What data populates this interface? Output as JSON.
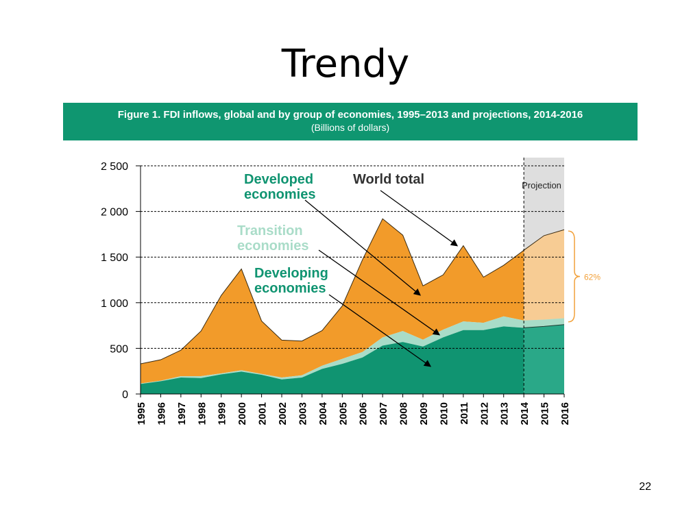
{
  "slide": {
    "title": "Trendy",
    "page_number": "22"
  },
  "figure": {
    "caption": "Figure 1. FDI inflows, global and by group of economies, 1995–2013 and projections, 2014-2016",
    "units": "(Billions of dollars)"
  },
  "colors": {
    "header_bg": "#0f9670",
    "developed": "#f29b2a",
    "transition": "#a9dcc8",
    "developing": "#109471",
    "developed_projection": "#f7cc94",
    "developing_projection": "#2aa888",
    "projection_bg": "#dedede",
    "bracket": "#f2a13a"
  },
  "chart_data": {
    "type": "area",
    "title": "Figure 1. FDI inflows, global and by group of economies, 1995–2013 and projections, 2014-2016",
    "subtitle": "(Billions of dollars)",
    "xlabel": "",
    "ylabel": "",
    "ylim": [
      0,
      2500
    ],
    "yticks": [
      0,
      500,
      1000,
      1500,
      2000,
      2500
    ],
    "ytick_labels": [
      "0",
      "500",
      "1 000",
      "1 500",
      "2 000",
      "2 500"
    ],
    "x": [
      "1995",
      "1996",
      "1997",
      "1998",
      "1999",
      "2000",
      "2001",
      "2002",
      "2003",
      "2004",
      "2005",
      "2006",
      "2007",
      "2008",
      "2009",
      "2010",
      "2011",
      "2012",
      "2013",
      "2014",
      "2015",
      "2016"
    ],
    "stacking": "cumulative",
    "series": [
      {
        "name": "Developing economies",
        "values": [
          110,
          140,
          180,
          175,
          215,
          245,
          210,
          160,
          180,
          275,
          330,
          400,
          530,
          570,
          520,
          620,
          700,
          700,
          740,
          725,
          740,
          760
        ]
      },
      {
        "name": "Transition economies",
        "values": [
          5,
          5,
          15,
          20,
          10,
          15,
          10,
          20,
          25,
          35,
          55,
          60,
          90,
          120,
          75,
          85,
          95,
          80,
          110,
          80,
          75,
          70
        ]
      },
      {
        "name": "Developed economies",
        "values": [
          215,
          230,
          285,
          495,
          855,
          1110,
          580,
          410,
          375,
          385,
          580,
          1010,
          1300,
          1050,
          590,
          600,
          830,
          500,
          560,
          770,
          920,
          970
        ]
      }
    ],
    "world_total": [
      330,
      375,
      480,
      690,
      1080,
      1370,
      800,
      590,
      580,
      695,
      965,
      1470,
      1920,
      1740,
      1185,
      1305,
      1625,
      1280,
      1410,
      1575,
      1735,
      1800
    ],
    "projection": {
      "start": "2014",
      "end": "2016",
      "label": "Projection"
    },
    "annotations": [
      {
        "text": "World total",
        "points_to": "world total line"
      },
      {
        "text": "Developed economies",
        "points_to": "developed area"
      },
      {
        "text": "Transition economies",
        "points_to": "transition band"
      },
      {
        "text": "Developing economies",
        "points_to": "developing area"
      },
      {
        "text": "62%",
        "points_to": "projection increase bracket"
      }
    ]
  }
}
